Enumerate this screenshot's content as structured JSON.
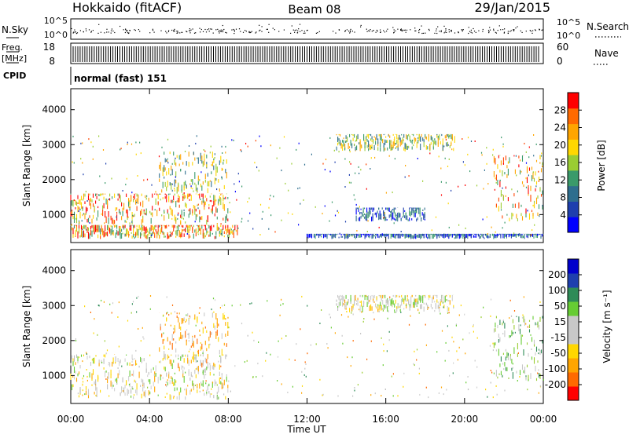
{
  "header": {
    "station": "Hokkaido (fitACF)",
    "beam": "Beam 08",
    "date": "29/Jan/2015"
  },
  "noise_panel": {
    "left_label": "N.Sky",
    "left_ticks": [
      "10^5",
      "10^0"
    ],
    "right_ticks": [
      "10^5",
      "10^0"
    ],
    "right_label": "N.Search"
  },
  "freq_panel": {
    "left_label_top": "Freq.",
    "left_label_units": "[MHz]",
    "left_ticks": [
      "18",
      "8"
    ],
    "right_ticks": [
      "60",
      "0"
    ],
    "right_label": "Nave"
  },
  "cpid": {
    "label": "CPID",
    "value": "normal (fast) 151"
  },
  "chart_data": [
    {
      "type": "heatmap",
      "name": "power",
      "ylabel": "Slant Range [km]",
      "yticks": [
        1000,
        2000,
        3000,
        4000
      ],
      "ylim": [
        200,
        4600
      ],
      "colorbar": {
        "label": "Power [dB]",
        "ticks": [
          "28",
          "24",
          "20",
          "16",
          "12",
          "8",
          "4"
        ],
        "colors": [
          "#0000ff",
          "#1e3fae",
          "#2e6e8e",
          "#3a9a6a",
          "#9acd32",
          "#ffd700",
          "#ffa500",
          "#ff6a00",
          "#ff0000"
        ]
      },
      "regions": [
        {
          "x0": 0.0,
          "x1": 8.0,
          "y0": 700,
          "y1": 1600,
          "level": "high"
        },
        {
          "x0": 0.0,
          "x1": 8.5,
          "y0": 300,
          "y1": 700,
          "level": "high"
        },
        {
          "x0": 4.5,
          "x1": 8.0,
          "y0": 1600,
          "y1": 2800,
          "level": "medium"
        },
        {
          "x0": 13.5,
          "x1": 19.5,
          "y0": 2800,
          "y1": 3300,
          "level": "medium"
        },
        {
          "x0": 14.5,
          "x1": 18.0,
          "y0": 800,
          "y1": 1200,
          "level": "low"
        },
        {
          "x0": 12.0,
          "x1": 24.0,
          "y0": 300,
          "y1": 450,
          "level": "low"
        },
        {
          "x0": 21.5,
          "x1": 24.0,
          "y0": 800,
          "y1": 2700,
          "level": "high"
        }
      ]
    },
    {
      "type": "heatmap",
      "name": "velocity",
      "ylabel": "Slant Range [km]",
      "yticks": [
        1000,
        2000,
        3000,
        4000
      ],
      "ylim": [
        200,
        4600
      ],
      "colorbar": {
        "label": "Velocity [m s⁻¹]",
        "ticks": [
          "200",
          "100",
          "50",
          "15",
          "-15",
          "-50",
          "-100",
          "-200"
        ],
        "colors": [
          "#ff0000",
          "#ff6a00",
          "#ffa500",
          "#ffd700",
          "#c8c8c8",
          "#c8c8c8",
          "#66cc33",
          "#2e8b57",
          "#1e3fae",
          "#0000cc"
        ]
      },
      "regions": [
        {
          "x0": 0.0,
          "x1": 8.0,
          "y0": 300,
          "y1": 1600,
          "level": "grey"
        },
        {
          "x0": 4.5,
          "x1": 8.0,
          "y0": 1200,
          "y1": 2800,
          "level": "orange"
        },
        {
          "x0": 13.5,
          "x1": 19.5,
          "y0": 2800,
          "y1": 3300,
          "level": "grey"
        },
        {
          "x0": 21.5,
          "x1": 24.0,
          "y0": 800,
          "y1": 2700,
          "level": "green"
        }
      ],
      "xlabel": "Time UT",
      "xticks": [
        "00:00",
        "04:00",
        "08:00",
        "12:00",
        "16:00",
        "20:00",
        "00:00"
      ],
      "xlim": [
        0,
        24
      ]
    }
  ]
}
